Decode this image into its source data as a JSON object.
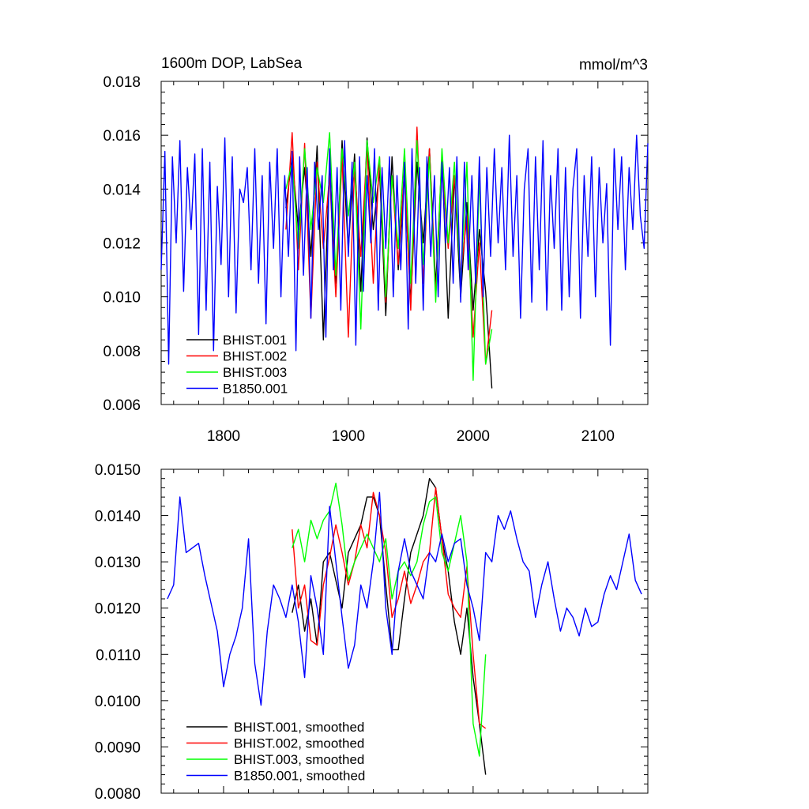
{
  "colors": {
    "BHIST.001": "#000000",
    "BHIST.002": "#ff0000",
    "BHIST.003": "#00ff00",
    "B1850.001": "#0000ff"
  },
  "chart_data": [
    {
      "type": "line",
      "title": "1600m DOP, LabSea",
      "units": "mmol/m^3",
      "xlim": [
        1750,
        2140
      ],
      "ylim": [
        0.006,
        0.018
      ],
      "xticks": [
        1800,
        1900,
        2000,
        2100
      ],
      "xtick_labels": [
        "1800",
        "1900",
        "2000",
        "2100"
      ],
      "yticks": [
        0.006,
        0.008,
        0.01,
        0.012,
        0.014,
        0.016,
        0.018
      ],
      "ytick_labels": [
        "0.006",
        "0.008",
        "0.010",
        "0.012",
        "0.014",
        "0.016",
        "0.018"
      ],
      "legend_position": "bottom-left",
      "series": [
        {
          "name": "BHIST.001",
          "x": [
            1850,
            1855,
            1860,
            1865,
            1870,
            1875,
            1880,
            1885,
            1890,
            1895,
            1900,
            1905,
            1910,
            1915,
            1920,
            1925,
            1930,
            1935,
            1940,
            1945,
            1950,
            1955,
            1960,
            1965,
            1970,
            1975,
            1980,
            1985,
            1990,
            1995,
            2000,
            2005,
            2010,
            2015
          ],
          "values": [
            0.0133,
            0.0152,
            0.0125,
            0.0148,
            0.0115,
            0.0156,
            0.0084,
            0.015,
            0.0105,
            0.0158,
            0.0118,
            0.0153,
            0.0102,
            0.0159,
            0.0125,
            0.0147,
            0.0093,
            0.0152,
            0.011,
            0.0145,
            0.0098,
            0.015,
            0.012,
            0.0155,
            0.0104,
            0.0152,
            0.0092,
            0.0145,
            0.01,
            0.0135,
            0.0095,
            0.0125,
            0.0102,
            0.0066
          ]
        },
        {
          "name": "BHIST.002",
          "x": [
            1850,
            1855,
            1860,
            1865,
            1870,
            1875,
            1880,
            1885,
            1890,
            1895,
            1900,
            1905,
            1910,
            1915,
            1920,
            1925,
            1930,
            1935,
            1940,
            1945,
            1950,
            1955,
            1960,
            1965,
            1970,
            1975,
            1980,
            1985,
            1990,
            1995,
            2000,
            2005,
            2010,
            2015
          ],
          "values": [
            0.0125,
            0.0161,
            0.011,
            0.0157,
            0.0092,
            0.015,
            0.0118,
            0.0145,
            0.01,
            0.0152,
            0.0085,
            0.0148,
            0.0115,
            0.0155,
            0.0105,
            0.0152,
            0.0098,
            0.0145,
            0.0112,
            0.0148,
            0.0095,
            0.0163,
            0.0105,
            0.0155,
            0.01,
            0.015,
            0.0118,
            0.0145,
            0.0108,
            0.013,
            0.0085,
            0.012,
            0.0075,
            0.0095
          ]
        },
        {
          "name": "BHIST.003",
          "x": [
            1850,
            1855,
            1860,
            1865,
            1870,
            1875,
            1880,
            1885,
            1890,
            1895,
            1900,
            1905,
            1910,
            1915,
            1920,
            1925,
            1930,
            1935,
            1940,
            1945,
            1950,
            1955,
            1960,
            1965,
            1970,
            1975,
            1980,
            1985,
            1990,
            1995,
            2000,
            2005,
            2010,
            2015
          ],
          "values": [
            0.014,
            0.015,
            0.0118,
            0.0155,
            0.0125,
            0.0148,
            0.0135,
            0.0161,
            0.0108,
            0.0155,
            0.013,
            0.015,
            0.0088,
            0.0158,
            0.0135,
            0.0152,
            0.01,
            0.0145,
            0.0118,
            0.0155,
            0.0105,
            0.0158,
            0.0112,
            0.0152,
            0.0098,
            0.0155,
            0.012,
            0.015,
            0.0105,
            0.015,
            0.0069,
            0.0145,
            0.0075,
            0.0088
          ]
        },
        {
          "name": "B1850.001",
          "x": [
            1750,
            1753,
            1756,
            1759,
            1762,
            1765,
            1768,
            1771,
            1774,
            1777,
            1780,
            1783,
            1786,
            1789,
            1792,
            1795,
            1798,
            1801,
            1804,
            1807,
            1810,
            1813,
            1816,
            1819,
            1822,
            1825,
            1828,
            1831,
            1834,
            1837,
            1840,
            1843,
            1846,
            1849,
            1852,
            1855,
            1858,
            1861,
            1864,
            1867,
            1870,
            1873,
            1876,
            1879,
            1882,
            1885,
            1888,
            1891,
            1894,
            1897,
            1900,
            1903,
            1906,
            1909,
            1912,
            1915,
            1918,
            1921,
            1924,
            1927,
            1930,
            1933,
            1936,
            1939,
            1942,
            1945,
            1948,
            1951,
            1954,
            1957,
            1960,
            1963,
            1966,
            1969,
            1972,
            1975,
            1978,
            1981,
            1984,
            1987,
            1990,
            1993,
            1996,
            1999,
            2002,
            2005,
            2008,
            2011,
            2014,
            2017,
            2020,
            2023,
            2026,
            2029,
            2032,
            2035,
            2038,
            2041,
            2044,
            2047,
            2050,
            2053,
            2056,
            2059,
            2062,
            2065,
            2068,
            2071,
            2074,
            2077,
            2080,
            2083,
            2086,
            2089,
            2092,
            2095,
            2098,
            2101,
            2104,
            2107,
            2110,
            2113,
            2116,
            2119,
            2122,
            2125,
            2128,
            2131,
            2134,
            2137,
            2140
          ],
          "values": [
            0.011,
            0.0154,
            0.0075,
            0.0152,
            0.012,
            0.0158,
            0.0102,
            0.0148,
            0.0125,
            0.0153,
            0.0086,
            0.0155,
            0.0095,
            0.015,
            0.008,
            0.0141,
            0.0112,
            0.0159,
            0.01,
            0.0152,
            0.0094,
            0.014,
            0.0135,
            0.0148,
            0.011,
            0.0155,
            0.0105,
            0.0145,
            0.009,
            0.015,
            0.0118,
            0.0155,
            0.01,
            0.0145,
            0.0115,
            0.0154,
            0.008,
            0.0152,
            0.0108,
            0.0148,
            0.0092,
            0.015,
            0.0125,
            0.0145,
            0.0085,
            0.0155,
            0.011,
            0.0148,
            0.0095,
            0.0158,
            0.0115,
            0.015,
            0.0082,
            0.0152,
            0.0102,
            0.0145,
            0.012,
            0.0155,
            0.0095,
            0.0148,
            0.0118,
            0.0152,
            0.01,
            0.0145,
            0.011,
            0.015,
            0.0088,
            0.0155,
            0.0105,
            0.0148,
            0.0095,
            0.0152,
            0.0115,
            0.0145,
            0.01,
            0.015,
            0.012,
            0.0148,
            0.0105,
            0.0152,
            0.0098,
            0.015,
            0.011,
            0.0145,
            0.0105,
            0.0152,
            0.01,
            0.0148,
            0.0115,
            0.0155,
            0.012,
            0.0148,
            0.011,
            0.016,
            0.0115,
            0.0145,
            0.0092,
            0.014,
            0.0155,
            0.0098,
            0.0152,
            0.011,
            0.0158,
            0.0095,
            0.0145,
            0.0118,
            0.0155,
            0.0095,
            0.0148,
            0.01,
            0.014,
            0.0155,
            0.0092,
            0.0145,
            0.0115,
            0.0152,
            0.01,
            0.0148,
            0.012,
            0.0142,
            0.0082,
            0.0155,
            0.0125,
            0.0152,
            0.011,
            0.0148,
            0.0125,
            0.016,
            0.013,
            0.0118,
            0.0157
          ]
        }
      ]
    },
    {
      "type": "line",
      "xlim": [
        1750,
        2140
      ],
      "ylim": [
        0.008,
        0.015
      ],
      "xticks": [
        1800,
        1900,
        2000,
        2100
      ],
      "yticks": [
        0.008,
        0.009,
        0.01,
        0.011,
        0.012,
        0.013,
        0.014,
        0.015
      ],
      "ytick_labels": [
        "0.0080",
        "0.0090",
        "0.0100",
        "0.0110",
        "0.0120",
        "0.0130",
        "0.0140",
        "0.0150"
      ],
      "legend_position": "bottom-left",
      "series": [
        {
          "name": "BHIST.001, smoothed",
          "x": [
            1855,
            1860,
            1865,
            1870,
            1875,
            1880,
            1885,
            1890,
            1895,
            1900,
            1905,
            1910,
            1915,
            1920,
            1925,
            1930,
            1935,
            1940,
            1945,
            1950,
            1955,
            1960,
            1965,
            1970,
            1975,
            1980,
            1985,
            1990,
            1995,
            2000,
            2005,
            2010
          ],
          "values": [
            0.0119,
            0.0125,
            0.0115,
            0.0122,
            0.0112,
            0.013,
            0.0132,
            0.0126,
            0.012,
            0.0132,
            0.0135,
            0.0138,
            0.0144,
            0.0144,
            0.014,
            0.0125,
            0.0111,
            0.0111,
            0.0122,
            0.0132,
            0.0136,
            0.014,
            0.0148,
            0.0146,
            0.0135,
            0.0128,
            0.0117,
            0.011,
            0.012,
            0.0105,
            0.0095,
            0.0084
          ]
        },
        {
          "name": "BHIST.002, smoothed",
          "x": [
            1855,
            1860,
            1865,
            1870,
            1875,
            1880,
            1885,
            1890,
            1895,
            1900,
            1905,
            1910,
            1915,
            1920,
            1925,
            1930,
            1935,
            1940,
            1945,
            1950,
            1955,
            1960,
            1965,
            1970,
            1975,
            1980,
            1985,
            1990,
            1995,
            2000,
            2005,
            2010
          ],
          "values": [
            0.0137,
            0.012,
            0.0125,
            0.0113,
            0.0112,
            0.0125,
            0.0131,
            0.0138,
            0.0132,
            0.0125,
            0.013,
            0.0138,
            0.0133,
            0.0145,
            0.014,
            0.0132,
            0.0118,
            0.0122,
            0.0128,
            0.0121,
            0.0125,
            0.013,
            0.0132,
            0.0146,
            0.0135,
            0.0123,
            0.012,
            0.0118,
            0.0129,
            0.011,
            0.0095,
            0.0094
          ]
        },
        {
          "name": "BHIST.003, smoothed",
          "x": [
            1855,
            1860,
            1865,
            1870,
            1875,
            1880,
            1885,
            1890,
            1895,
            1900,
            1905,
            1910,
            1915,
            1920,
            1925,
            1930,
            1935,
            1940,
            1945,
            1950,
            1955,
            1960,
            1965,
            1970,
            1975,
            1980,
            1985,
            1990,
            1995,
            2000,
            2005,
            2010
          ],
          "values": [
            0.0133,
            0.0137,
            0.013,
            0.0139,
            0.0135,
            0.0139,
            0.0141,
            0.0147,
            0.0138,
            0.0126,
            0.013,
            0.0133,
            0.0136,
            0.0133,
            0.013,
            0.0135,
            0.0122,
            0.0128,
            0.013,
            0.0127,
            0.013,
            0.0138,
            0.0143,
            0.0144,
            0.0132,
            0.0128,
            0.0134,
            0.014,
            0.013,
            0.0095,
            0.0088,
            0.011
          ]
        },
        {
          "name": "B1850.001, smoothed",
          "x": [
            1755,
            1760,
            1765,
            1770,
            1775,
            1780,
            1785,
            1790,
            1795,
            1800,
            1805,
            1810,
            1815,
            1820,
            1825,
            1830,
            1835,
            1840,
            1845,
            1850,
            1855,
            1860,
            1865,
            1870,
            1875,
            1880,
            1885,
            1890,
            1895,
            1900,
            1905,
            1910,
            1915,
            1920,
            1925,
            1930,
            1935,
            1940,
            1945,
            1950,
            1955,
            1960,
            1965,
            1970,
            1975,
            1980,
            1985,
            1990,
            1995,
            2000,
            2005,
            2010,
            2015,
            2020,
            2025,
            2030,
            2035,
            2040,
            2045,
            2050,
            2055,
            2060,
            2065,
            2070,
            2075,
            2080,
            2085,
            2090,
            2095,
            2100,
            2105,
            2110,
            2115,
            2120,
            2125,
            2130,
            2135
          ],
          "values": [
            0.0122,
            0.0125,
            0.0144,
            0.0132,
            0.0133,
            0.0134,
            0.0127,
            0.0121,
            0.0115,
            0.0103,
            0.011,
            0.0114,
            0.012,
            0.0135,
            0.0108,
            0.0099,
            0.0115,
            0.0125,
            0.0122,
            0.0118,
            0.0125,
            0.0117,
            0.0105,
            0.0127,
            0.012,
            0.011,
            0.0142,
            0.013,
            0.0118,
            0.0107,
            0.0112,
            0.0125,
            0.012,
            0.013,
            0.0145,
            0.012,
            0.011,
            0.0128,
            0.0135,
            0.0128,
            0.0125,
            0.0122,
            0.0132,
            0.013,
            0.0136,
            0.013,
            0.0134,
            0.0135,
            0.0125,
            0.012,
            0.0113,
            0.0132,
            0.013,
            0.014,
            0.0137,
            0.0141,
            0.0135,
            0.013,
            0.0128,
            0.0118,
            0.0125,
            0.013,
            0.0122,
            0.0115,
            0.012,
            0.0118,
            0.0114,
            0.012,
            0.0116,
            0.0117,
            0.0123,
            0.0127,
            0.0124,
            0.013,
            0.0136,
            0.0126,
            0.0123
          ]
        }
      ]
    }
  ]
}
